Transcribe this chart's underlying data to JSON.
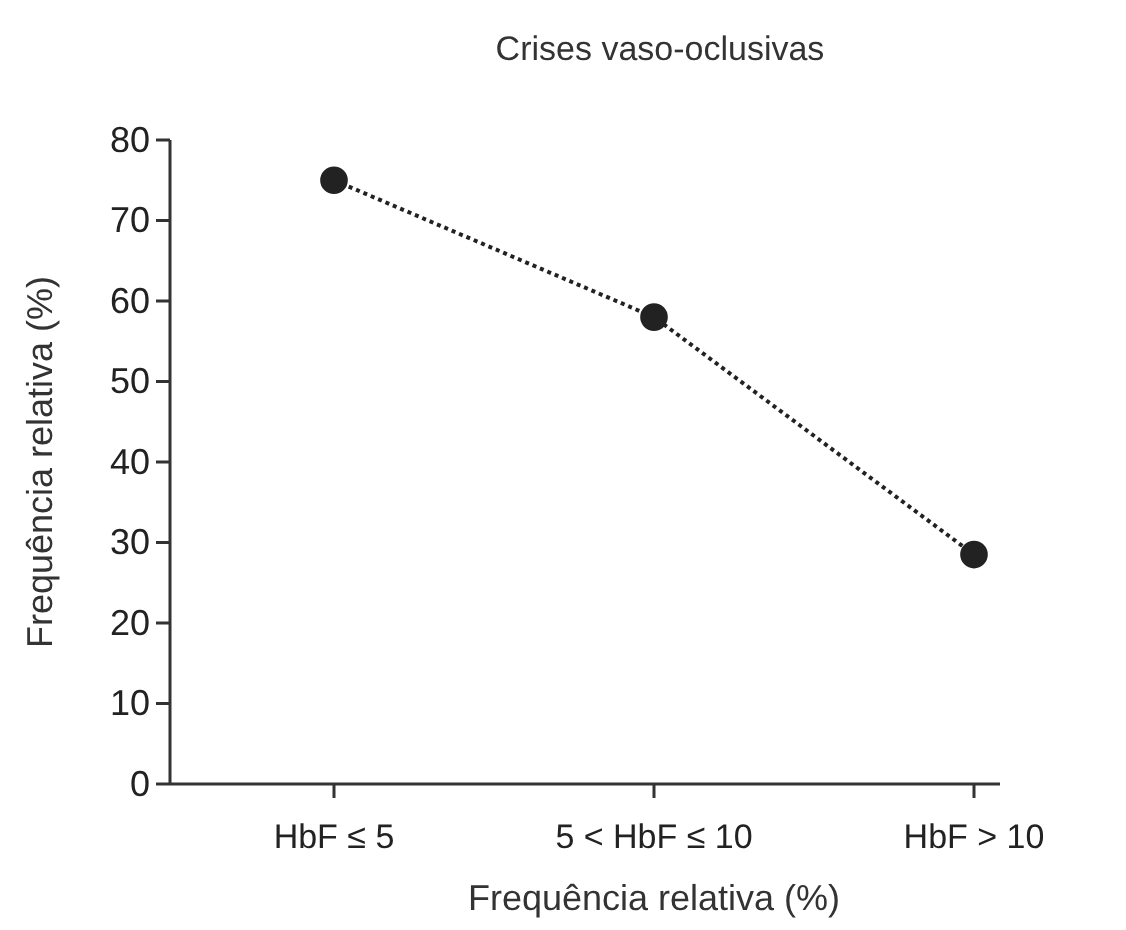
{
  "chart_data": {
    "type": "line",
    "title": "Crises vaso-oclusivas",
    "xlabel": "Frequência relativa (%)",
    "ylabel": "Frequência relativa (%)",
    "categories": [
      "HbF ≤ 5",
      "5 < HbF ≤ 10",
      "HbF > 10"
    ],
    "series": [
      {
        "color": "#222222",
        "values": [
          75,
          58,
          28.5
        ]
      }
    ],
    "ylim": [
      0,
      80
    ],
    "yticks": [
      0,
      10,
      20,
      30,
      40,
      50,
      60,
      70,
      80
    ],
    "grid": false,
    "marker": "circle",
    "line_style": "dotted"
  }
}
